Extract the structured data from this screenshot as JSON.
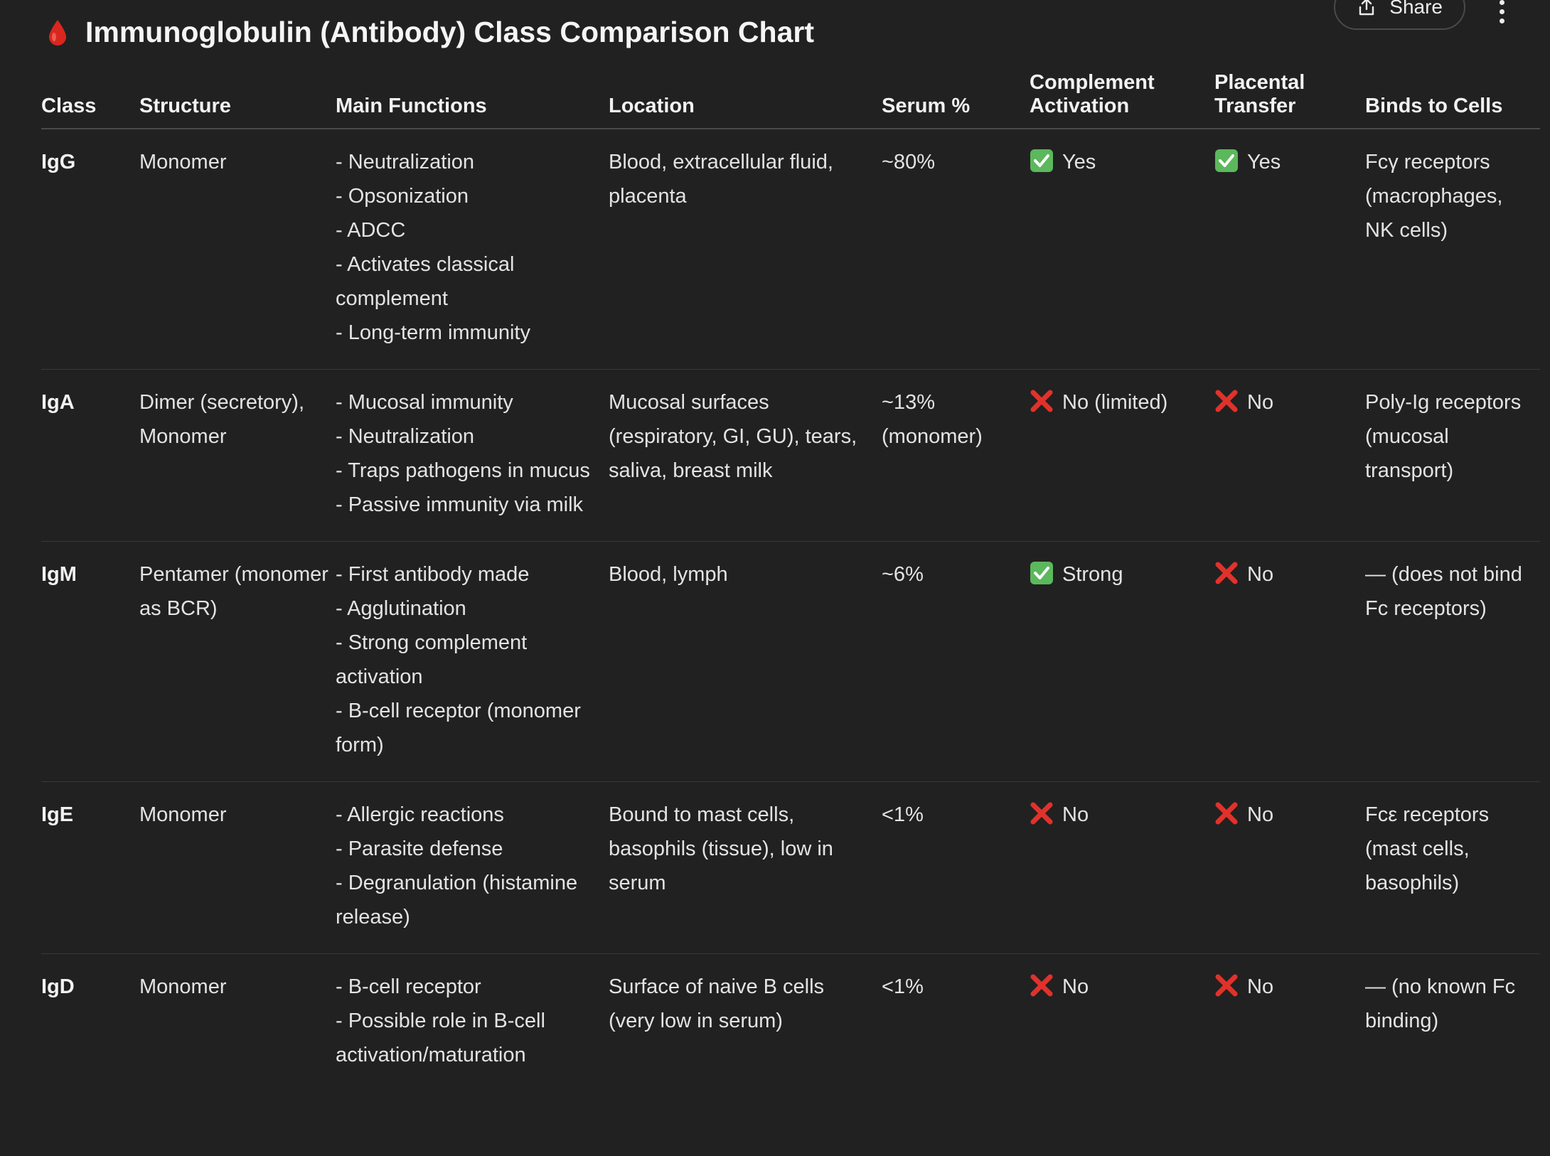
{
  "toolbar": {
    "share_label": "Share",
    "share_icon": "share-icon",
    "more_icon": "more-vertical-icon"
  },
  "title": {
    "icon": "blood-drop-icon",
    "text": "Immunoglobulin (Antibody) Class Comparison Chart"
  },
  "colors": {
    "background": "#212121",
    "yes_badge": "#5cb85c",
    "no_mark": "#e0322b",
    "drop": "#d9271f"
  },
  "table": {
    "headers": {
      "class": "Class",
      "structure": "Structure",
      "functions": "Main Functions",
      "location": "Location",
      "serum": "Serum %",
      "complement": "Complement Activation",
      "placental": "Placental Transfer",
      "binds": "Binds to Cells"
    },
    "rows": [
      {
        "class": "IgG",
        "structure": "Monomer",
        "functions": [
          "- Neutralization",
          "- Opsonization",
          "- ADCC",
          "- Activates classical complement",
          "- Long-term immunity"
        ],
        "location": "Blood, extracellular fluid, placenta",
        "serum": "~80%",
        "complement": {
          "status": "yes",
          "text": "Yes"
        },
        "placental": {
          "status": "yes",
          "text": "Yes"
        },
        "binds": "Fcγ receptors (macrophages, NK cells)"
      },
      {
        "class": "IgA",
        "structure": "Dimer (secretory), Monomer",
        "functions": [
          "- Mucosal immunity",
          "- Neutralization",
          "- Traps pathogens in mucus",
          "- Passive immunity via milk"
        ],
        "location": "Mucosal surfaces (respiratory, GI, GU), tears, saliva, breast milk",
        "serum": "~13% (monomer)",
        "complement": {
          "status": "no",
          "text": "No (limited)"
        },
        "placental": {
          "status": "no",
          "text": "No"
        },
        "binds": "Poly-Ig receptors (mucosal transport)"
      },
      {
        "class": "IgM",
        "structure": "Pentamer (monomer as BCR)",
        "functions": [
          "- First antibody made",
          "- Agglutination",
          "- Strong complement activation",
          "- B-cell receptor (monomer form)"
        ],
        "location": "Blood, lymph",
        "serum": "~6%",
        "complement": {
          "status": "yes",
          "text": "Strong"
        },
        "placental": {
          "status": "no",
          "text": "No"
        },
        "binds": "— (does not bind Fc receptors)"
      },
      {
        "class": "IgE",
        "structure": "Monomer",
        "functions": [
          "- Allergic reactions",
          "- Parasite defense",
          "- Degranulation (histamine release)"
        ],
        "location": "Bound to mast cells, basophils (tissue), low in serum",
        "serum": "<1%",
        "complement": {
          "status": "no",
          "text": "No"
        },
        "placental": {
          "status": "no",
          "text": "No"
        },
        "binds": "Fcε receptors (mast cells, basophils)"
      },
      {
        "class": "IgD",
        "structure": "Monomer",
        "functions": [
          "- B-cell receptor",
          "- Possible role in B-cell activation/maturation"
        ],
        "location": "Surface of naive B cells (very low in serum)",
        "serum": "<1%",
        "complement": {
          "status": "no",
          "text": "No"
        },
        "placental": {
          "status": "no",
          "text": "No"
        },
        "binds": "— (no known Fc binding)"
      }
    ]
  }
}
